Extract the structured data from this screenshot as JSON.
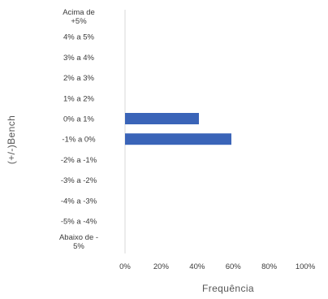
{
  "chart_data": {
    "type": "bar",
    "orientation": "horizontal",
    "categories": [
      "Acima de +5%",
      "4% a 5%",
      "3% a 4%",
      "2% a 3%",
      "1% a 2%",
      "0% a 1%",
      "-1% a 0%",
      "-2% a -1%",
      "-3% a -2%",
      "-4% a -3%",
      "-5% a -4%",
      "Abaixo de -5%"
    ],
    "category_lines": [
      [
        "Acima de",
        "+5%"
      ],
      [
        "4% a 5%"
      ],
      [
        "3% a 4%"
      ],
      [
        "2% a 3%"
      ],
      [
        "1% a 2%"
      ],
      [
        "0% a 1%"
      ],
      [
        "-1% a 0%"
      ],
      [
        "-2% a -1%"
      ],
      [
        "-3% a -2%"
      ],
      [
        "-4% a -3%"
      ],
      [
        "-5% a -4%"
      ],
      [
        "Abaixo de -",
        "5%"
      ]
    ],
    "values": [
      0,
      0,
      0,
      0,
      0,
      41,
      59,
      0,
      0,
      0,
      0,
      0
    ],
    "title": "",
    "xlabel": "Frequência",
    "ylabel": "(+/-)Bench",
    "xlim": [
      0,
      100
    ],
    "xticks": [
      "0%",
      "20%",
      "40%",
      "60%",
      "80%",
      "100%"
    ],
    "grid": false,
    "legend": "none",
    "colors": {
      "bar": "#3a64b8",
      "axis": "#d8d8d8"
    }
  }
}
